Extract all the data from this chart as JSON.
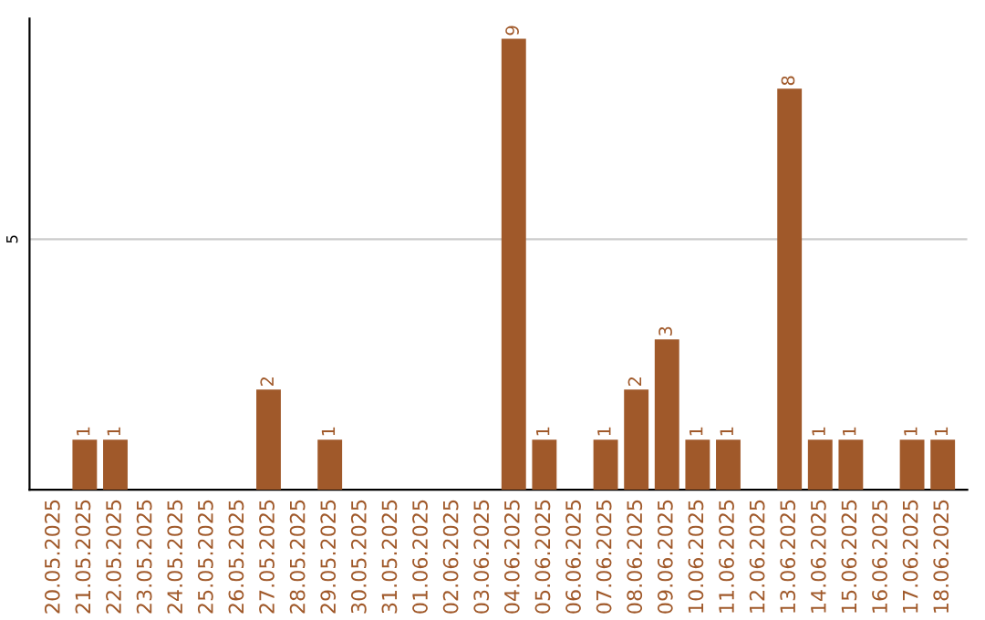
{
  "chart_data": {
    "type": "bar",
    "categories": [
      "20.05.2025",
      "21.05.2025",
      "22.05.2025",
      "23.05.2025",
      "24.05.2025",
      "25.05.2025",
      "26.05.2025",
      "27.05.2025",
      "28.05.2025",
      "29.05.2025",
      "30.05.2025",
      "31.05.2025",
      "01.06.2025",
      "02.06.2025",
      "03.06.2025",
      "04.06.2025",
      "05.06.2025",
      "06.06.2025",
      "07.06.2025",
      "08.06.2025",
      "09.06.2025",
      "10.06.2025",
      "11.06.2025",
      "12.06.2025",
      "13.06.2025",
      "14.06.2025",
      "15.06.2025",
      "16.06.2025",
      "17.06.2025",
      "18.06.2025"
    ],
    "values": [
      0,
      1,
      1,
      0,
      0,
      0,
      0,
      2,
      0,
      1,
      0,
      0,
      0,
      0,
      0,
      9,
      1,
      0,
      1,
      2,
      3,
      1,
      1,
      0,
      8,
      1,
      1,
      0,
      1,
      1
    ],
    "value_labels": [
      null,
      "1",
      "1",
      null,
      null,
      null,
      null,
      "2",
      null,
      "1",
      null,
      null,
      null,
      null,
      null,
      "9",
      "1",
      null,
      "1",
      "2",
      "3",
      "1",
      "1",
      null,
      "8",
      "1",
      "1",
      null,
      "1",
      "1"
    ],
    "color": "#a0592a",
    "ylim": [
      0,
      9.4
    ],
    "yticks": [
      5
    ],
    "grid": "y"
  }
}
